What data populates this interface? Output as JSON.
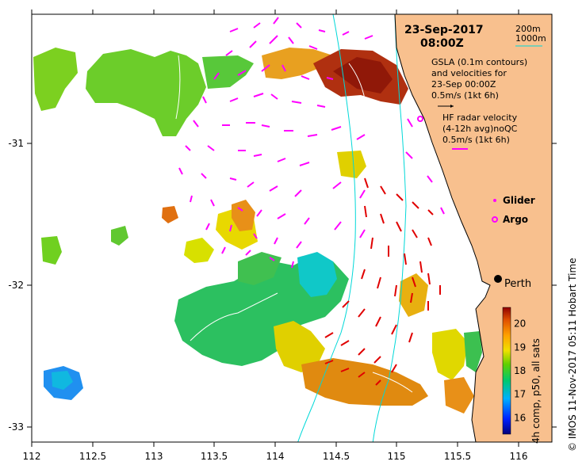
{
  "map": {
    "date": "23-Sep-2017",
    "time": "08:00Z",
    "x_ticks": [
      "112",
      "112.5",
      "113",
      "113.5",
      "114",
      "114.5",
      "115",
      "115.5",
      "116"
    ],
    "y_ticks": [
      "-31",
      "-32",
      "-33"
    ],
    "city": "Perth",
    "colors": {
      "land": "#f8c08e",
      "vectors": "#ff00ff",
      "radar": "#e00000",
      "contours": "#00d8d8"
    }
  },
  "legend": {
    "contour_200": "200m",
    "contour_1000": "1000m",
    "gsla_line1": "GSLA (0.1m contours)",
    "gsla_line2": "and velocities for",
    "gsla_line3": "23-Sep 00:00Z",
    "gsla_scale": "0.5m/s (1kt 6h)",
    "hf_line1": "HF radar velocity",
    "hf_line2": "(4-12h avg)noQC",
    "hf_scale": "0.5m/s (1kt 6h)",
    "glider": "Glider",
    "argo": "Argo"
  },
  "colorbar": {
    "label": "4h comp, p50, all sats",
    "ticks": [
      "20",
      "19",
      "18",
      "17",
      "16"
    ],
    "range": [
      15.3,
      20.7
    ]
  },
  "credit": "© IMOS 11-Nov-2017 05:11 Hobart Time"
}
